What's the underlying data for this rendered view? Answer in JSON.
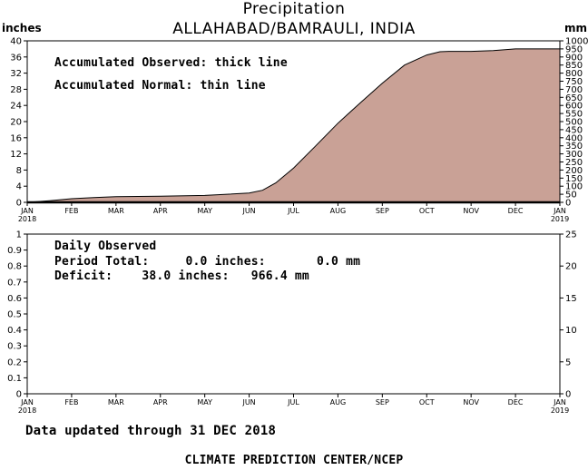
{
  "header": {
    "title": "Precipitation",
    "station": "ALLAHABAD/BAMRAULI, INDIA",
    "left_unit": "inches",
    "right_unit": "mm"
  },
  "upper_panel": {
    "legend_observed": "Accumulated Observed: thick line",
    "legend_normal": "Accumulated Normal: thin line"
  },
  "lower_panel": {
    "heading": "Daily Observed",
    "period_total": "Period Total:     0.0 inches:       0.0 mm",
    "deficit": "Deficit:    38.0 inches:   966.4 mm"
  },
  "footer": {
    "updated": "Data updated through 31 DEC 2018",
    "credit": "CLIMATE PREDICTION CENTER/NCEP"
  },
  "colors": {
    "normal_fill": "#c9a196",
    "line": "#000000"
  },
  "chart_data": [
    {
      "type": "area",
      "name": "accumulated",
      "x_month_labels": [
        "JAN",
        "FEB",
        "MAR",
        "APR",
        "MAY",
        "JUN",
        "JUL",
        "AUG",
        "SEP",
        "OCT",
        "NOV",
        "DEC",
        "JAN"
      ],
      "x_year_start": "2018",
      "x_year_end": "2019",
      "ylabel_left": "inches",
      "ylabel_right": "mm",
      "ylim_left": [
        0,
        40
      ],
      "ylim_right": [
        0,
        1000
      ],
      "y_ticks_left": [
        0,
        4,
        8,
        12,
        16,
        20,
        24,
        28,
        32,
        36,
        40
      ],
      "y_ticks_right": [
        0,
        50,
        100,
        150,
        200,
        250,
        300,
        350,
        400,
        450,
        500,
        550,
        600,
        650,
        700,
        750,
        800,
        850,
        900,
        950,
        1000
      ],
      "normal_series": {
        "unit": "inches",
        "x_month": [
          0,
          0.5,
          1,
          1.5,
          2,
          3,
          4,
          4.5,
          5,
          5.3,
          5.6,
          6,
          6.5,
          7,
          7.5,
          8,
          8.5,
          9,
          9.3,
          9.5,
          9.8,
          10,
          10.5,
          11,
          11.5,
          12
        ],
        "values": [
          0,
          0.4,
          0.9,
          1.2,
          1.4,
          1.5,
          1.7,
          2.0,
          2.3,
          3.0,
          4.8,
          8.5,
          14.0,
          19.6,
          24.6,
          29.5,
          34.0,
          36.5,
          37.3,
          37.4,
          37.4,
          37.4,
          37.6,
          38.0,
          38.0,
          38.0
        ]
      },
      "observed_series": {
        "unit": "inches",
        "x_month": [
          0,
          12
        ],
        "values": [
          0,
          0
        ]
      }
    },
    {
      "type": "bar",
      "name": "daily_observed",
      "x_month_labels": [
        "JAN",
        "FEB",
        "MAR",
        "APR",
        "MAY",
        "JUN",
        "JUL",
        "AUG",
        "SEP",
        "OCT",
        "NOV",
        "DEC",
        "JAN"
      ],
      "x_year_start": "2018",
      "x_year_end": "2019",
      "ylim_left": [
        0,
        1
      ],
      "ylim_right": [
        0,
        25
      ],
      "y_ticks_left": [
        0,
        0.1,
        0.2,
        0.3,
        0.4,
        0.5,
        0.6,
        0.7,
        0.8,
        0.9,
        1
      ],
      "y_ticks_right": [
        0,
        5,
        10,
        15,
        20,
        25
      ],
      "values": []
    }
  ]
}
